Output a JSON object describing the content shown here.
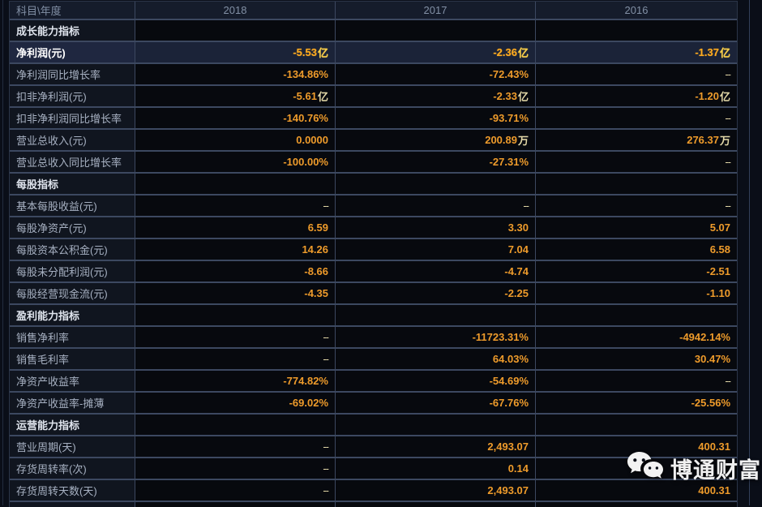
{
  "watermark": {
    "brand": "博通财富"
  },
  "colors": {
    "value_orange": "#ee9b2b",
    "unit_cream": "#e4d9a8",
    "highlight_row_bg": "#1b2338",
    "highlight_value": "#ffab1f",
    "grid_line": "#3c4860",
    "label_text": "#a7b1c2",
    "header_text": "#8290a5"
  },
  "table": {
    "header": {
      "subject_label": "科目\\年度",
      "years": [
        "2018",
        "2017",
        "2016"
      ]
    },
    "rows": [
      {
        "type": "section",
        "label": "成长能力指标"
      },
      {
        "type": "data",
        "highlight": true,
        "label": "净利润(元)",
        "values": [
          "-5.53亿",
          "-2.36亿",
          "-1.37亿"
        ]
      },
      {
        "type": "data",
        "label": "净利润同比增长率",
        "values": [
          "-134.86%",
          "-72.43%",
          "--"
        ]
      },
      {
        "type": "data",
        "label": "扣非净利润(元)",
        "values": [
          "-5.61亿",
          "-2.33亿",
          "-1.20亿"
        ]
      },
      {
        "type": "data",
        "label": "扣非净利润同比增长率",
        "values": [
          "-140.76%",
          "-93.71%",
          "--"
        ]
      },
      {
        "type": "data",
        "label": "营业总收入(元)",
        "values": [
          "0.0000",
          "200.89万",
          "276.37万"
        ]
      },
      {
        "type": "data",
        "label": "营业总收入同比增长率",
        "values": [
          "-100.00%",
          "-27.31%",
          "--"
        ]
      },
      {
        "type": "section",
        "label": "每股指标"
      },
      {
        "type": "data",
        "label": "基本每股收益(元)",
        "values": [
          "--",
          "--",
          "--"
        ]
      },
      {
        "type": "data",
        "label": "每股净资产(元)",
        "values": [
          "6.59",
          "3.30",
          "5.07"
        ]
      },
      {
        "type": "data",
        "label": "每股资本公积金(元)",
        "values": [
          "14.26",
          "7.04",
          "6.58"
        ]
      },
      {
        "type": "data",
        "label": "每股未分配利润(元)",
        "values": [
          "-8.66",
          "-4.74",
          "-2.51"
        ]
      },
      {
        "type": "data",
        "label": "每股经营现金流(元)",
        "values": [
          "-4.35",
          "-2.25",
          "-1.10"
        ]
      },
      {
        "type": "section",
        "label": "盈利能力指标"
      },
      {
        "type": "data",
        "label": "销售净利率",
        "values": [
          "--",
          "-11723.31%",
          "-4942.14%"
        ]
      },
      {
        "type": "data",
        "label": "销售毛利率",
        "values": [
          "--",
          "64.03%",
          "30.47%"
        ]
      },
      {
        "type": "data",
        "label": "净资产收益率",
        "values": [
          "-774.82%",
          "-54.69%",
          "--"
        ]
      },
      {
        "type": "data",
        "label": "净资产收益率-摊薄",
        "values": [
          "-69.02%",
          "-67.76%",
          "-25.56%"
        ]
      },
      {
        "type": "section",
        "label": "运营能力指标"
      },
      {
        "type": "data",
        "label": "营业周期(天)",
        "values": [
          "--",
          "2,493.07",
          "400.31"
        ]
      },
      {
        "type": "data",
        "label": "存货周转率(次)",
        "values": [
          "--",
          "0.14",
          ""
        ]
      },
      {
        "type": "data",
        "label": "存货周转天数(天)",
        "values": [
          "--",
          "2,493.07",
          "400.31"
        ]
      }
    ]
  }
}
